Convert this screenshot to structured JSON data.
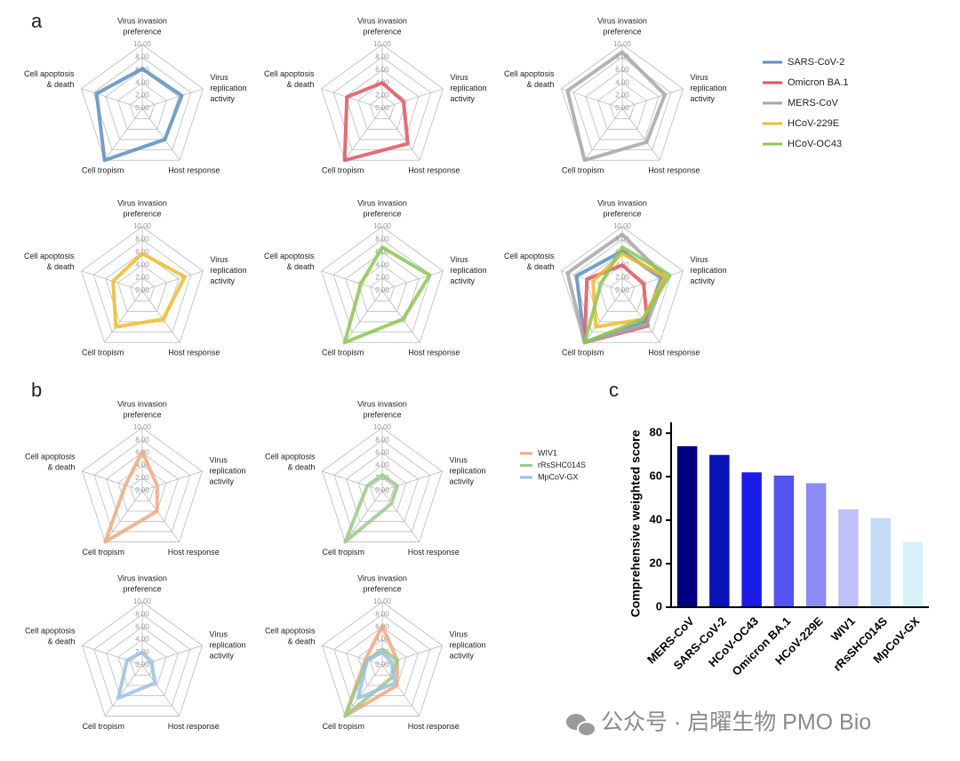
{
  "watermark": "公众号 · 启曜生物 PMO Bio",
  "chart_data": [
    {
      "type": "radar",
      "panel": "a",
      "axes": [
        [
          "Virus invasion",
          "preference"
        ],
        [
          "Virus",
          "replication",
          "activity"
        ],
        [
          "Host response"
        ],
        [
          "Cell tropism"
        ],
        [
          "Cell apoptosis",
          "& death"
        ]
      ],
      "ylim": [
        0,
        10
      ],
      "yticks": [
        {
          "value": 0,
          "label": "0.00"
        },
        {
          "value": 2,
          "label": "2.00"
        },
        {
          "value": 4,
          "label": "4.00"
        },
        {
          "value": 6,
          "label": "6.00"
        },
        {
          "value": 8,
          "label": "8.00"
        },
        {
          "value": 10,
          "label": "10.00"
        }
      ],
      "series": [
        {
          "name": "SARS-CoV-2",
          "color": "#5b8fc0",
          "values": [
            6.2,
            6.5,
            6.0,
            10,
            7.5
          ]
        }
      ]
    },
    {
      "type": "radar",
      "axes": [
        [
          "Virus invasion",
          "preference"
        ],
        [
          "Virus",
          "replication",
          "activity"
        ],
        [
          "Host response"
        ],
        [
          "Cell tropism"
        ],
        [
          "Cell apoptosis",
          "& death"
        ]
      ],
      "ylim": [
        0,
        10
      ],
      "yticks": [
        {
          "value": 0,
          "label": "0.00"
        },
        {
          "value": 2,
          "label": "2.00"
        },
        {
          "value": 4,
          "label": "4.00"
        },
        {
          "value": 6,
          "label": "6.00"
        },
        {
          "value": 8,
          "label": "8.00"
        },
        {
          "value": 10,
          "label": "10.00"
        }
      ],
      "series": [
        {
          "name": "Omicron BA.1",
          "color": "#e0535e",
          "values": [
            4.0,
            3.5,
            6.8,
            10,
            5.8
          ]
        }
      ]
    },
    {
      "type": "radar",
      "axes": [
        [
          "Virus invasion",
          "preference"
        ],
        [
          "Virus",
          "replication",
          "activity"
        ],
        [
          "Host response"
        ],
        [
          "Cell tropism"
        ],
        [
          "Cell apoptosis",
          "& death"
        ]
      ],
      "ylim": [
        0,
        10
      ],
      "yticks": [
        {
          "value": 0,
          "label": "0.00"
        },
        {
          "value": 2,
          "label": "2.00"
        },
        {
          "value": 4,
          "label": "4.00"
        },
        {
          "value": 6,
          "label": "6.00"
        },
        {
          "value": 8,
          "label": "8.00"
        },
        {
          "value": 10,
          "label": "10.00"
        }
      ],
      "series": [
        {
          "name": "MERS-CoV",
          "color": "#a6a6a6",
          "values": [
            8.8,
            7.0,
            6.5,
            10,
            9.0
          ]
        }
      ]
    },
    {
      "type": "radar",
      "axes": [
        [
          "Virus invasion",
          "preference"
        ],
        [
          "Virus",
          "replication",
          "activity"
        ],
        [
          "Host response"
        ],
        [
          "Cell tropism"
        ],
        [
          "Cell apoptosis",
          "& death"
        ]
      ],
      "ylim": [
        0,
        10
      ],
      "yticks": [
        {
          "value": 0,
          "label": "0.00"
        },
        {
          "value": 2,
          "label": "2.00"
        },
        {
          "value": 4,
          "label": "4.00"
        },
        {
          "value": 6,
          "label": "6.00"
        },
        {
          "value": 8,
          "label": "8.00"
        },
        {
          "value": 10,
          "label": "10.00"
        }
      ],
      "series": [
        {
          "name": "HCoV-229E",
          "color": "#f0bb2a",
          "values": [
            5.8,
            7.0,
            5.5,
            7.0,
            4.8
          ]
        }
      ]
    },
    {
      "type": "radar",
      "axes": [
        [
          "Virus invasion",
          "preference"
        ],
        [
          "Virus",
          "replication",
          "activity"
        ],
        [
          "Host response"
        ],
        [
          "Cell tropism"
        ],
        [
          "Cell apoptosis",
          "& death"
        ]
      ],
      "ylim": [
        0,
        10
      ],
      "yticks": [
        {
          "value": 0,
          "label": "0.00"
        },
        {
          "value": 2,
          "label": "2.00"
        },
        {
          "value": 4,
          "label": "4.00"
        },
        {
          "value": 6,
          "label": "6.00"
        },
        {
          "value": 8,
          "label": "8.00"
        },
        {
          "value": 10,
          "label": "10.00"
        }
      ],
      "series": [
        {
          "name": "HCoV-OC43",
          "color": "#8cc653",
          "values": [
            6.8,
            7.8,
            5.5,
            10,
            3.5
          ]
        }
      ]
    },
    {
      "type": "radar",
      "legend": "right",
      "axes": [
        [
          "Virus invasion",
          "preference"
        ],
        [
          "Virus",
          "replication",
          "activity"
        ],
        [
          "Host response"
        ],
        [
          "Cell tropism"
        ],
        [
          "Cell apoptosis",
          "& death"
        ]
      ],
      "ylim": [
        0,
        10
      ],
      "yticks": [
        {
          "value": 0,
          "label": "0.00"
        },
        {
          "value": 2,
          "label": "2.00"
        },
        {
          "value": 4,
          "label": "4.00"
        },
        {
          "value": 6,
          "label": "6.00"
        },
        {
          "value": 8,
          "label": "8.00"
        },
        {
          "value": 10,
          "label": "10.00"
        }
      ],
      "series": [
        {
          "name": "SARS-CoV-2",
          "color": "#5b8fc0",
          "values": [
            6.2,
            6.5,
            6.0,
            10,
            7.5
          ]
        },
        {
          "name": "Omicron BA.1",
          "color": "#e0535e",
          "values": [
            4.0,
            3.5,
            6.8,
            10,
            5.8
          ]
        },
        {
          "name": "MERS-CoV",
          "color": "#a6a6a6",
          "values": [
            8.8,
            7.0,
            6.5,
            10,
            9.0
          ]
        },
        {
          "name": "HCoV-229E",
          "color": "#f0bb2a",
          "values": [
            5.8,
            7.0,
            5.5,
            7.0,
            4.8
          ]
        },
        {
          "name": "HCoV-OC43",
          "color": "#8cc653",
          "values": [
            6.8,
            7.8,
            5.5,
            10,
            3.5
          ]
        }
      ]
    },
    {
      "type": "radar",
      "panel": "b",
      "axes": [
        [
          "Virus invasion",
          "preference"
        ],
        [
          "Virus",
          "replication",
          "activity"
        ],
        [
          "Host response"
        ],
        [
          "Cell tropism"
        ],
        [
          "Cell apoptosis",
          "& death"
        ]
      ],
      "ylim": [
        0,
        10
      ],
      "yticks": [
        {
          "value": 0,
          "label": "0.00"
        },
        {
          "value": 2,
          "label": "2.00"
        },
        {
          "value": 4,
          "label": "4.00"
        },
        {
          "value": 6,
          "label": "6.00"
        },
        {
          "value": 8,
          "label": "8.00"
        },
        {
          "value": 10,
          "label": "10.00"
        }
      ],
      "series": [
        {
          "name": "WIV1",
          "color": "#f0a880",
          "values": [
            6.2,
            2.5,
            4.0,
            10,
            2.8
          ]
        }
      ]
    },
    {
      "type": "radar",
      "axes": [
        [
          "Virus invasion",
          "preference"
        ],
        [
          "Virus",
          "replication",
          "activity"
        ],
        [
          "Host response"
        ],
        [
          "Cell tropism"
        ],
        [
          "Cell apoptosis",
          "& death"
        ]
      ],
      "ylim": [
        0,
        10
      ],
      "yticks": [
        {
          "value": 0,
          "label": "0.00"
        },
        {
          "value": 2,
          "label": "2.00"
        },
        {
          "value": 4,
          "label": "4.00"
        },
        {
          "value": 6,
          "label": "6.00"
        },
        {
          "value": 8,
          "label": "8.00"
        },
        {
          "value": 10,
          "label": "10.00"
        }
      ],
      "series": [
        {
          "name": "rRsSHC014S",
          "color": "#9cc98a",
          "values": [
            2.5,
            2.5,
            2.5,
            10,
            2.5
          ]
        }
      ]
    },
    {
      "type": "radar",
      "axes": [
        [
          "Virus invasion",
          "preference"
        ],
        [
          "Virus",
          "replication",
          "activity"
        ],
        [
          "Host response"
        ],
        [
          "Cell tropism"
        ],
        [
          "Cell apoptosis",
          "& death"
        ]
      ],
      "ylim": [
        0,
        10
      ],
      "yticks": [
        {
          "value": 0,
          "label": "0.00"
        },
        {
          "value": 2,
          "label": "2.00"
        },
        {
          "value": 4,
          "label": "4.00"
        },
        {
          "value": 6,
          "label": "6.00"
        },
        {
          "value": 8,
          "label": "8.00"
        },
        {
          "value": 10,
          "label": "10.00"
        }
      ],
      "series": [
        {
          "name": "MpCoV-GX",
          "color": "#9cc0e3",
          "values": [
            2.0,
            1.5,
            3.5,
            6.5,
            2.5
          ]
        }
      ]
    },
    {
      "type": "radar",
      "legend": "upper-left",
      "axes": [
        [
          "Virus invasion",
          "preference"
        ],
        [
          "Virus",
          "replication",
          "activity"
        ],
        [
          "Host response"
        ],
        [
          "Cell tropism"
        ],
        [
          "Cell apoptosis",
          "& death"
        ]
      ],
      "ylim": [
        0,
        10
      ],
      "yticks": [
        {
          "value": 0,
          "label": "0.00"
        },
        {
          "value": 2,
          "label": "2.00"
        },
        {
          "value": 4,
          "label": "4.00"
        },
        {
          "value": 6,
          "label": "6.00"
        },
        {
          "value": 8,
          "label": "8.00"
        },
        {
          "value": 10,
          "label": "10.00"
        }
      ],
      "series": [
        {
          "name": "WIV1",
          "color": "#f0a880",
          "values": [
            6.2,
            2.5,
            4.0,
            10,
            2.8
          ]
        },
        {
          "name": "rRsSHC014S",
          "color": "#9cc98a",
          "values": [
            2.5,
            2.5,
            2.5,
            10,
            2.5
          ]
        },
        {
          "name": "MpCoV-GX",
          "color": "#9cc0e3",
          "values": [
            2.0,
            1.5,
            3.5,
            6.5,
            2.5
          ]
        }
      ]
    },
    {
      "type": "bar",
      "panel": "c",
      "ylabel": "Comprehensive weighted score",
      "categories": [
        "MERS-CoV",
        "SARS-CoV-2",
        "HCoV-OC43",
        "Omicron BA.1",
        "HCoV-229E",
        "WIV1",
        "rRsSHC014S",
        "MpCoV-GX"
      ],
      "values": [
        74,
        70,
        62,
        60.5,
        57,
        45,
        41,
        30
      ],
      "colors": [
        "#000080",
        "#0a14b8",
        "#1b1be8",
        "#5454f0",
        "#8c8cf5",
        "#c0c0f8",
        "#c5daf5",
        "#d6f2f8"
      ],
      "ylim": [
        0,
        85
      ],
      "yticks": [
        0,
        20,
        40,
        60,
        80
      ]
    }
  ]
}
